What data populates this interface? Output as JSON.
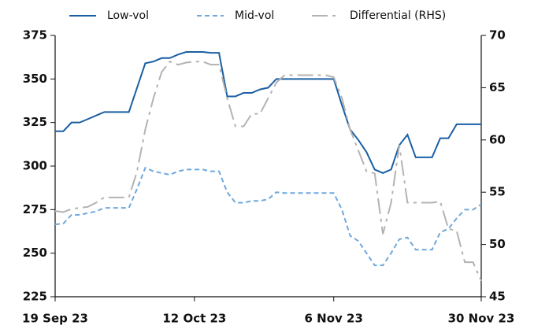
{
  "chart_data": {
    "type": "line",
    "categories": [
      "19 Sep 23",
      null,
      null,
      null,
      null,
      null,
      null,
      null,
      null,
      null,
      null,
      null,
      null,
      null,
      null,
      null,
      null,
      "12 Oct 23",
      null,
      null,
      null,
      null,
      null,
      null,
      null,
      null,
      null,
      null,
      null,
      null,
      null,
      null,
      null,
      null,
      "6 Nov 23",
      null,
      null,
      null,
      null,
      null,
      null,
      null,
      null,
      null,
      null,
      null,
      null,
      null,
      null,
      null,
      null,
      null,
      "30 Nov 23"
    ],
    "series": [
      {
        "name": "Low-vol",
        "color": "#1a5fa3",
        "linestyle": "solid",
        "values": [
          320,
          320,
          325,
          325,
          327,
          329,
          331,
          331,
          331,
          331,
          345,
          359,
          360,
          362,
          362,
          364,
          365.5,
          365.5,
          365.5,
          365,
          365,
          340,
          340,
          342,
          342,
          344,
          345,
          350,
          350,
          350,
          350,
          350,
          350,
          350,
          350,
          335,
          321,
          315,
          308,
          298,
          296,
          298,
          312,
          318,
          305,
          305,
          305,
          316,
          316,
          324,
          324,
          324,
          324
        ]
      },
      {
        "name": "Mid-vol",
        "color": "#6fa8dc",
        "linestyle": "dashed",
        "values": [
          266.5,
          267,
          272,
          272,
          273,
          274,
          276,
          276,
          276,
          276,
          287,
          299,
          297,
          296,
          295,
          297,
          298,
          298,
          298,
          297,
          297,
          285,
          279,
          279,
          280,
          280,
          281,
          285,
          284.5,
          284.5,
          284.5,
          284.5,
          284.5,
          284.5,
          284.5,
          275,
          260,
          257,
          250,
          243,
          243,
          250,
          258,
          259,
          252,
          252,
          252,
          262,
          264,
          270,
          275,
          275,
          278
        ]
      },
      {
        "name": "Differential (RHS)",
        "color": "#b3b3b3",
        "linestyle": "dashdot",
        "axis": "y2",
        "values": [
          53.2,
          53.1,
          53.4,
          53.5,
          53.6,
          54,
          54.5,
          54.5,
          54.5,
          54.5,
          57,
          61,
          64,
          66.5,
          67.5,
          67.2,
          67.4,
          67.5,
          67.5,
          67.2,
          67.2,
          64,
          61.3,
          61.3,
          62.5,
          62.5,
          64,
          65.5,
          66.2,
          66.2,
          66.2,
          66.2,
          66.2,
          66.2,
          66,
          64,
          61,
          59,
          57,
          56.8,
          51,
          54,
          59.5,
          54,
          54,
          54,
          54,
          54.1,
          51.5,
          51.3,
          48.3,
          48.3,
          46.5
        ]
      }
    ],
    "ylim": [
      225,
      375
    ],
    "yticks": [
      225,
      250,
      275,
      300,
      325,
      350,
      375
    ],
    "y2lim": [
      45,
      70
    ],
    "y2ticks": [
      45,
      50,
      55,
      60,
      65,
      70
    ],
    "legend": "top"
  }
}
